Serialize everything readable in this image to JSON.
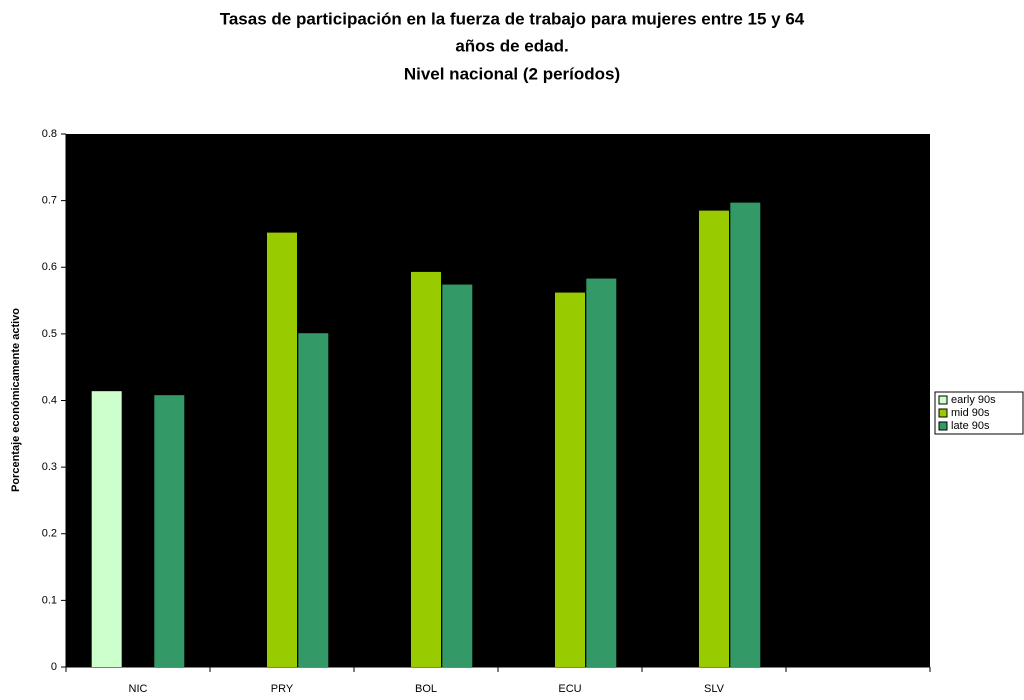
{
  "chart_data": {
    "type": "bar",
    "title": [
      "Tasas de participación en la fuerza de trabajo para mujeres entre 15 y 64",
      "años de edad.",
      "Nivel nacional  (2 períodos)"
    ],
    "y_label": "Porcentaje económicamente activo",
    "categories": [
      "NIC",
      "PRY",
      "BOL",
      "ECU",
      "SLV",
      null
    ],
    "series": [
      {
        "name": "early 90s",
        "color": "#ccffcc",
        "values": [
          0.414,
          null,
          null,
          null,
          null,
          null
        ]
      },
      {
        "name": "mid 90s",
        "color": "#99cc00",
        "values": [
          null,
          0.652,
          0.593,
          0.562,
          0.685,
          null
        ]
      },
      {
        "name": "late 90s",
        "color": "#339966",
        "values": [
          0.408,
          0.501,
          0.574,
          0.583,
          0.697,
          null
        ]
      }
    ],
    "ylim": [
      0,
      0.8
    ],
    "yticks": [
      0,
      0.1,
      0.2,
      0.3,
      0.4,
      0.5,
      0.6,
      0.7,
      0.8
    ],
    "plot_background": "#000000",
    "legend": "right"
  }
}
